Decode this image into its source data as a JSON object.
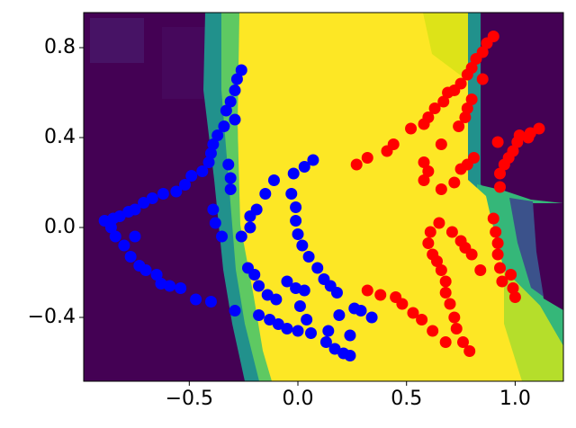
{
  "chart_data": {
    "type": "scatter",
    "xlim": [
      -0.986,
      1.222
    ],
    "ylim": [
      -0.684,
      0.956
    ],
    "xticks": [
      {
        "value": -0.5,
        "label": "−0.5"
      },
      {
        "value": 0.0,
        "label": "0.0"
      },
      {
        "value": 0.5,
        "label": "0.5"
      },
      {
        "value": 1.0,
        "label": "1.0"
      }
    ],
    "yticks": [
      {
        "value": -0.4,
        "label": "−0.4"
      },
      {
        "value": 0.0,
        "label": "0.0"
      },
      {
        "value": 0.4,
        "label": "0.4"
      },
      {
        "value": 0.8,
        "label": "0.8"
      }
    ],
    "series": [
      {
        "color": "#0000ff",
        "x": [
          -0.26,
          -0.28,
          -0.29,
          -0.31,
          -0.33,
          -0.29,
          -0.34,
          -0.37,
          -0.39,
          -0.4,
          -0.41,
          -0.44,
          -0.49,
          -0.52,
          -0.56,
          -0.62,
          -0.67,
          -0.71,
          -0.75,
          -0.78,
          -0.82,
          -0.85,
          -0.89,
          -0.86,
          -0.84,
          -0.8,
          -0.77,
          -0.73,
          -0.7,
          -0.65,
          -0.63,
          -0.59,
          -0.54,
          -0.47,
          -0.4,
          -0.29,
          -0.75,
          -0.39,
          -0.38,
          -0.35,
          -0.26,
          -0.22,
          -0.22,
          -0.19,
          -0.15,
          -0.11,
          -0.03,
          -0.01,
          -0.01,
          -0.02,
          0.03,
          0.07,
          0.0,
          0.02,
          0.05,
          0.09,
          0.12,
          0.15,
          0.18,
          -0.23,
          -0.2,
          -0.18,
          -0.14,
          -0.1,
          -0.05,
          -0.01,
          0.03,
          0.01,
          0.04,
          0.06,
          0.13,
          0.17,
          0.21,
          0.24,
          -0.18,
          -0.13,
          -0.09,
          -0.05,
          0.0,
          0.19,
          0.26,
          0.29,
          0.34,
          0.24,
          0.14,
          -0.32,
          -0.31,
          -0.31
        ],
        "y": [
          0.7,
          0.66,
          0.61,
          0.56,
          0.52,
          0.48,
          0.45,
          0.41,
          0.37,
          0.33,
          0.29,
          0.25,
          0.23,
          0.19,
          0.16,
          0.15,
          0.13,
          0.11,
          0.08,
          0.07,
          0.05,
          0.04,
          0.03,
          0.0,
          -0.04,
          -0.08,
          -0.13,
          -0.17,
          -0.19,
          -0.21,
          -0.25,
          -0.26,
          -0.27,
          -0.32,
          -0.33,
          -0.37,
          -0.04,
          0.08,
          0.02,
          -0.04,
          -0.04,
          0.05,
          0.0,
          0.08,
          0.15,
          0.21,
          0.15,
          0.09,
          0.03,
          0.24,
          0.27,
          0.3,
          -0.03,
          -0.08,
          -0.13,
          -0.18,
          -0.23,
          -0.26,
          -0.29,
          -0.18,
          -0.21,
          -0.26,
          -0.3,
          -0.32,
          -0.24,
          -0.27,
          -0.28,
          -0.35,
          -0.41,
          -0.47,
          -0.51,
          -0.54,
          -0.56,
          -0.57,
          -0.39,
          -0.41,
          -0.43,
          -0.45,
          -0.46,
          -0.39,
          -0.36,
          -0.37,
          -0.4,
          -0.48,
          -0.46,
          0.28,
          0.22,
          0.17
        ]
      },
      {
        "color": "#ff0000",
        "x": [
          0.9,
          0.87,
          0.85,
          0.82,
          0.8,
          0.78,
          0.75,
          0.72,
          0.69,
          0.67,
          0.63,
          0.6,
          0.58,
          0.52,
          0.44,
          0.41,
          0.32,
          0.27,
          0.66,
          0.74,
          0.77,
          0.78,
          0.8,
          0.85,
          1.11,
          1.07,
          1.02,
          1.01,
          0.99,
          0.97,
          0.95,
          0.93,
          0.93,
          0.92,
          0.58,
          0.6,
          0.58,
          0.66,
          0.72,
          0.75,
          0.78,
          0.81,
          0.65,
          0.61,
          0.6,
          0.62,
          0.64,
          0.66,
          0.68,
          0.68,
          0.7,
          0.72,
          0.73,
          0.76,
          0.79,
          0.68,
          0.62,
          0.57,
          0.53,
          0.48,
          0.45,
          0.38,
          0.32,
          0.71,
          0.75,
          0.77,
          0.8,
          0.84,
          0.9,
          0.91,
          0.92,
          0.92,
          0.93,
          0.94,
          0.99,
          1.0,
          0.98,
          1.06
        ],
        "y": [
          0.85,
          0.82,
          0.78,
          0.75,
          0.71,
          0.68,
          0.64,
          0.61,
          0.6,
          0.56,
          0.53,
          0.49,
          0.46,
          0.44,
          0.37,
          0.34,
          0.31,
          0.28,
          0.37,
          0.45,
          0.49,
          0.53,
          0.57,
          0.66,
          0.44,
          0.42,
          0.41,
          0.38,
          0.34,
          0.31,
          0.28,
          0.24,
          0.18,
          0.38,
          0.29,
          0.25,
          0.21,
          0.17,
          0.2,
          0.26,
          0.28,
          0.31,
          0.02,
          -0.02,
          -0.07,
          -0.12,
          -0.15,
          -0.19,
          -0.24,
          -0.29,
          -0.34,
          -0.4,
          -0.45,
          -0.51,
          -0.55,
          -0.51,
          -0.46,
          -0.41,
          -0.38,
          -0.34,
          -0.31,
          -0.3,
          -0.28,
          -0.02,
          -0.06,
          -0.09,
          -0.12,
          -0.19,
          0.04,
          -0.02,
          -0.07,
          -0.12,
          -0.18,
          -0.24,
          -0.27,
          -0.31,
          -0.21,
          0.4
        ]
      }
    ]
  }
}
